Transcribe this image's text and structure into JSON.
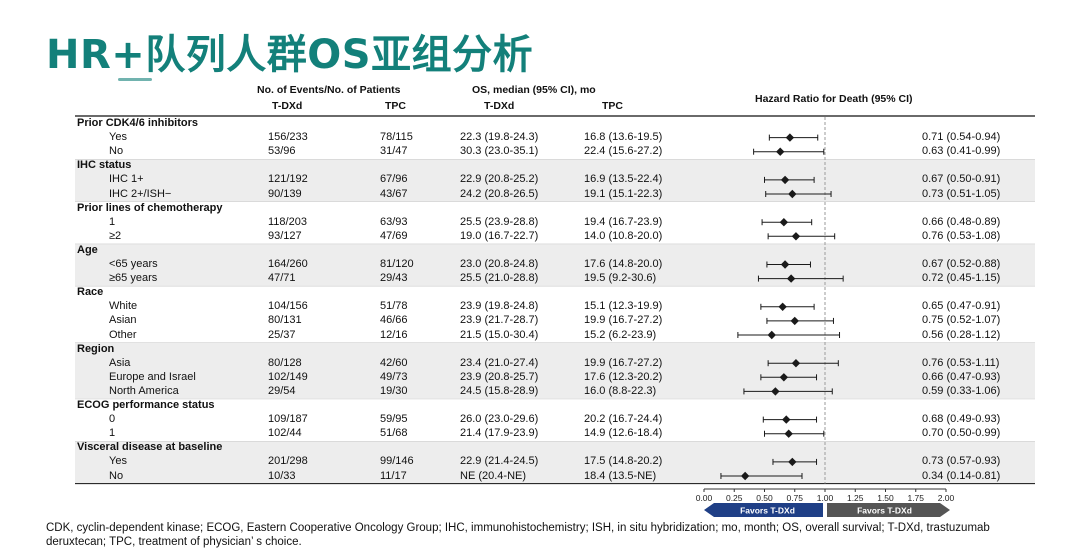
{
  "slide": {
    "title": "HR+队列人群OS亚组分析",
    "footnote": "CDK, cyclin-dependent kinase; ECOG, Eastern Cooperative Oncology Group; IHC, immunohistochemistry; ISH, in situ hybridization; mo, month; OS, overall survival; T-DXd, trastuzumab deruxtecan; TPC, treatment of physician’ s choice."
  },
  "headers": {
    "events_group": "No. of Events/No. of Patients",
    "os_group": "OS, median (95% CI), mo",
    "tdxd": "T-DXd",
    "tpc": "TPC",
    "hazard": "Hazard Ratio for Death (95% CI)"
  },
  "colors": {
    "title": "#13807a",
    "band": "#ededed",
    "marker": "#1a1a1a",
    "favors_left": "#1f3f86",
    "favors_right": "#555555"
  },
  "chart_data": {
    "type": "forest",
    "title": "",
    "xlabel": "",
    "xlim": [
      0,
      2
    ],
    "reference_line": 1.0,
    "tick_labels": [
      "0.00",
      "0.25",
      "0.50",
      "0.75",
      "1.00",
      "1.25",
      "1.50",
      "1.75",
      "2.00"
    ],
    "favors": [
      "Favors T-DXd",
      "Favors T-DXd"
    ],
    "groups": [
      {
        "name": "Prior CDK4/6 inhibitors",
        "rows": [
          {
            "label": "Yes",
            "tdxd_events": "156/233",
            "tpc_events": "78/115",
            "tdxd_os": "22.3 (19.8-24.3)",
            "tpc_os": "16.8 (13.6-19.5)",
            "hr": 0.71,
            "lo": 0.54,
            "hi": 0.94,
            "hr_text": "0.71 (0.54-0.94)"
          },
          {
            "label": "No",
            "tdxd_events": "53/96",
            "tpc_events": "31/47",
            "tdxd_os": "30.3 (23.0-35.1)",
            "tpc_os": "22.4 (15.6-27.2)",
            "hr": 0.63,
            "lo": 0.41,
            "hi": 0.99,
            "hr_text": "0.63 (0.41-0.99)"
          }
        ]
      },
      {
        "name": "IHC status",
        "rows": [
          {
            "label": "IHC 1+",
            "tdxd_events": "121/192",
            "tpc_events": "67/96",
            "tdxd_os": "22.9 (20.8-25.2)",
            "tpc_os": "16.9 (13.5-22.4)",
            "hr": 0.67,
            "lo": 0.5,
            "hi": 0.91,
            "hr_text": "0.67 (0.50-0.91)"
          },
          {
            "label": "IHC 2+/ISH−",
            "tdxd_events": "90/139",
            "tpc_events": "43/67",
            "tdxd_os": "24.2 (20.8-26.5)",
            "tpc_os": "19.1 (15.1-22.3)",
            "hr": 0.73,
            "lo": 0.51,
            "hi": 1.05,
            "hr_text": "0.73 (0.51-1.05)"
          }
        ]
      },
      {
        "name": "Prior lines of chemotherapy",
        "rows": [
          {
            "label": "1",
            "tdxd_events": "118/203",
            "tpc_events": "63/93",
            "tdxd_os": "25.5 (23.9-28.8)",
            "tpc_os": "19.4 (16.7-23.9)",
            "hr": 0.66,
            "lo": 0.48,
            "hi": 0.89,
            "hr_text": "0.66 (0.48-0.89)"
          },
          {
            "label": "≥2",
            "tdxd_events": "93/127",
            "tpc_events": "47/69",
            "tdxd_os": "19.0 (16.7-22.7)",
            "tpc_os": "14.0 (10.8-20.0)",
            "hr": 0.76,
            "lo": 0.53,
            "hi": 1.08,
            "hr_text": "0.76 (0.53-1.08)"
          }
        ]
      },
      {
        "name": "Age",
        "rows": [
          {
            "label": "<65 years",
            "tdxd_events": "164/260",
            "tpc_events": "81/120",
            "tdxd_os": "23.0 (20.8-24.8)",
            "tpc_os": "17.6 (14.8-20.0)",
            "hr": 0.67,
            "lo": 0.52,
            "hi": 0.88,
            "hr_text": "0.67 (0.52-0.88)"
          },
          {
            "label": "≥65 years",
            "tdxd_events": "47/71",
            "tpc_events": "29/43",
            "tdxd_os": "25.5 (21.0-28.8)",
            "tpc_os": "19.5 (9.2-30.6)",
            "hr": 0.72,
            "lo": 0.45,
            "hi": 1.15,
            "hr_text": "0.72 (0.45-1.15)"
          }
        ]
      },
      {
        "name": "Race",
        "rows": [
          {
            "label": "White",
            "tdxd_events": "104/156",
            "tpc_events": "51/78",
            "tdxd_os": "23.9 (19.8-24.8)",
            "tpc_os": "15.1 (12.3-19.9)",
            "hr": 0.65,
            "lo": 0.47,
            "hi": 0.91,
            "hr_text": "0.65 (0.47-0.91)"
          },
          {
            "label": "Asian",
            "tdxd_events": "80/131",
            "tpc_events": "46/66",
            "tdxd_os": "23.9 (21.7-28.7)",
            "tpc_os": "19.9 (16.7-27.2)",
            "hr": 0.75,
            "lo": 0.52,
            "hi": 1.07,
            "hr_text": "0.75 (0.52-1.07)"
          },
          {
            "label": "Other",
            "tdxd_events": "25/37",
            "tpc_events": "12/16",
            "tdxd_os": "21.5 (15.0-30.4)",
            "tpc_os": "15.2 (6.2-23.9)",
            "hr": 0.56,
            "lo": 0.28,
            "hi": 1.12,
            "hr_text": "0.56 (0.28-1.12)"
          }
        ]
      },
      {
        "name": "Region",
        "rows": [
          {
            "label": "Asia",
            "tdxd_events": "80/128",
            "tpc_events": "42/60",
            "tdxd_os": "23.4 (21.0-27.4)",
            "tpc_os": "19.9 (16.7-27.2)",
            "hr": 0.76,
            "lo": 0.53,
            "hi": 1.11,
            "hr_text": "0.76 (0.53-1.11)"
          },
          {
            "label": "Europe and Israel",
            "tdxd_events": "102/149",
            "tpc_events": "49/73",
            "tdxd_os": "23.9 (20.8-25.7)",
            "tpc_os": "17.6 (12.3-20.2)",
            "hr": 0.66,
            "lo": 0.47,
            "hi": 0.93,
            "hr_text": "0.66 (0.47-0.93)"
          },
          {
            "label": "North America",
            "tdxd_events": "29/54",
            "tpc_events": "19/30",
            "tdxd_os": "24.5 (15.8-28.9)",
            "tpc_os": "16.0 (8.8-22.3)",
            "hr": 0.59,
            "lo": 0.33,
            "hi": 1.06,
            "hr_text": "0.59 (0.33-1.06)"
          }
        ]
      },
      {
        "name": "ECOG performance status",
        "rows": [
          {
            "label": "0",
            "tdxd_events": "109/187",
            "tpc_events": "59/95",
            "tdxd_os": "26.0 (23.0-29.6)",
            "tpc_os": "20.2 (16.7-24.4)",
            "hr": 0.68,
            "lo": 0.49,
            "hi": 0.93,
            "hr_text": "0.68 (0.49-0.93)"
          },
          {
            "label": "1",
            "tdxd_events": "102/44",
            "tpc_events": "51/68",
            "tdxd_os": "21.4 (17.9-23.9)",
            "tpc_os": "14.9 (12.6-18.4)",
            "hr": 0.7,
            "lo": 0.5,
            "hi": 0.99,
            "hr_text": "0.70 (0.50-0.99)"
          }
        ]
      },
      {
        "name": "Visceral disease at baseline",
        "rows": [
          {
            "label": "Yes",
            "tdxd_events": "201/298",
            "tpc_events": "99/146",
            "tdxd_os": "22.9 (21.4-24.5)",
            "tpc_os": "17.5 (14.8-20.2)",
            "hr": 0.73,
            "lo": 0.57,
            "hi": 0.93,
            "hr_text": "0.73 (0.57-0.93)"
          },
          {
            "label": "No",
            "tdxd_events": "10/33",
            "tpc_events": "11/17",
            "tdxd_os": "NE (20.4-NE)",
            "tpc_os": "18.4 (13.5-NE)",
            "hr": 0.34,
            "lo": 0.14,
            "hi": 0.81,
            "hr_text": "0.34 (0.14-0.81)"
          }
        ]
      }
    ]
  }
}
